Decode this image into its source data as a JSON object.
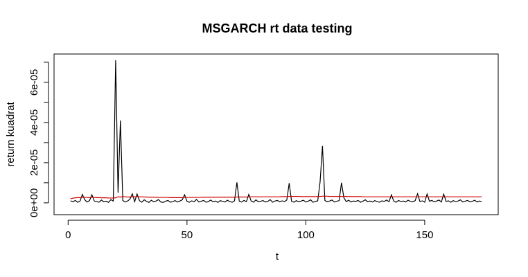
{
  "chart_data": {
    "type": "line",
    "title": "MSGARCH rt data testing",
    "x_label": "t",
    "y_label": "return kuadrat",
    "x": [
      1,
      2,
      3,
      4,
      5,
      6,
      7,
      8,
      9,
      10,
      11,
      12,
      13,
      14,
      15,
      16,
      17,
      18,
      19,
      20,
      21,
      22,
      23,
      24,
      25,
      26,
      27,
      28,
      29,
      30,
      31,
      32,
      33,
      34,
      35,
      36,
      37,
      38,
      39,
      40,
      41,
      42,
      43,
      44,
      45,
      46,
      47,
      48,
      49,
      50,
      51,
      52,
      53,
      54,
      55,
      56,
      57,
      58,
      59,
      60,
      61,
      62,
      63,
      64,
      65,
      66,
      67,
      68,
      69,
      70,
      71,
      72,
      73,
      74,
      75,
      76,
      77,
      78,
      79,
      80,
      81,
      82,
      83,
      84,
      85,
      86,
      87,
      88,
      89,
      90,
      91,
      92,
      93,
      94,
      95,
      96,
      97,
      98,
      99,
      100,
      101,
      102,
      103,
      104,
      105,
      106,
      107,
      108,
      109,
      110,
      111,
      112,
      113,
      114,
      115,
      116,
      117,
      118,
      119,
      120,
      121,
      122,
      123,
      124,
      125,
      126,
      127,
      128,
      129,
      130,
      131,
      132,
      133,
      134,
      135,
      136,
      137,
      138,
      139,
      140,
      141,
      142,
      143,
      144,
      145,
      146,
      147,
      148,
      149,
      150,
      151,
      152,
      153,
      154,
      155,
      156,
      157,
      158,
      159,
      160,
      161,
      162,
      163,
      164,
      165,
      166,
      167,
      168,
      169,
      170,
      171,
      172,
      173,
      174
    ],
    "series": [
      {
        "color": "#000000",
        "values": [
          1e-06,
          5e-07,
          1.2e-06,
          3e-07,
          8e-07,
          4.2e-06,
          1.5e-06,
          4e-07,
          1.1e-06,
          4e-06,
          9e-07,
          6e-07,
          3e-07,
          1.4e-06,
          5e-07,
          8e-07,
          2e-07,
          1.6e-06,
          9e-07,
          7.1e-05,
          5e-06,
          4.1e-05,
          1.2e-06,
          4e-07,
          9e-07,
          1.8e-06,
          4.5e-06,
          6e-07,
          4.4e-06,
          1.1e-06,
          3e-07,
          1.5e-06,
          7e-07,
          2e-07,
          1.3e-06,
          5e-07,
          9e-07,
          1.6e-06,
          4e-07,
          2e-07,
          8e-07,
          1.2e-06,
          3e-07,
          6e-07,
          1.1e-06,
          4e-07,
          9e-07,
          1.5e-06,
          4e-06,
          7e-07,
          3e-07,
          1e-06,
          5e-07,
          1.7e-06,
          4e-07,
          8e-07,
          1.2e-06,
          3e-07,
          6e-07,
          1.4e-06,
          5e-07,
          9e-07,
          2e-07,
          1.1e-06,
          7e-07,
          4e-07,
          1.3e-06,
          6e-07,
          3e-07,
          1e-06,
          1.02e-05,
          8e-07,
          4e-07,
          1.2e-06,
          6e-07,
          4.2e-06,
          9e-07,
          3e-07,
          1.5e-06,
          5e-07,
          8e-07,
          1.1e-06,
          4e-07,
          7e-07,
          1.6e-06,
          3e-07,
          9e-07,
          1.2e-06,
          5e-07,
          1e-06,
          6e-07,
          1.4e-06,
          9.8e-06,
          7e-07,
          3e-07,
          1.1e-06,
          5e-07,
          9e-07,
          1.3e-06,
          4e-07,
          8e-07,
          1.5e-06,
          3e-07,
          7e-07,
          1e-06,
          1.05e-05,
          2.83e-05,
          1.2e-06,
          5e-07,
          9e-07,
          1.4e-06,
          4e-07,
          8e-07,
          1.1e-06,
          1e-05,
          2.5e-06,
          6e-07,
          1.3e-06,
          4e-07,
          9e-07,
          7e-07,
          1.2e-06,
          3e-07,
          8e-07,
          1.5e-06,
          5e-07,
          9e-07,
          4e-07,
          1.1e-06,
          6e-07,
          3e-07,
          1e-06,
          7e-07,
          1.4e-06,
          5e-07,
          4e-06,
          8e-07,
          3e-07,
          1.2e-06,
          6e-07,
          9e-07,
          4e-07,
          1.3e-06,
          7e-07,
          5e-07,
          1.1e-06,
          4.5e-06,
          6e-07,
          1e-06,
          3e-07,
          4.4e-06,
          8e-07,
          1.2e-06,
          5e-07,
          9e-07,
          1.4e-06,
          4e-07,
          4.3e-06,
          7e-07,
          1e-06,
          3e-07,
          1.1e-06,
          6e-07,
          9e-07,
          1.5e-06,
          4e-07,
          8e-07,
          1.2e-06,
          5e-07,
          7e-07,
          1.3e-06,
          4e-07,
          9e-07,
          6e-07
        ]
      },
      {
        "color": "#cc0000",
        "values": [
          2e-06,
          2.3e-06,
          2.5e-06,
          2.6e-06,
          2.6e-06,
          2.8e-06,
          2.7e-06,
          2.7e-06,
          2.6e-06,
          2.8e-06,
          2.7e-06,
          2.6e-06,
          2.6e-06,
          2.5e-06,
          2.5e-06,
          2.5e-06,
          2.4e-06,
          2.4e-06,
          2.4e-06,
          2.5e-06,
          3e-06,
          2.9e-06,
          3.1e-06,
          3e-06,
          2.9e-06,
          2.9e-06,
          3e-06,
          3e-06,
          3.1e-06,
          3e-06,
          3e-06,
          2.9e-06,
          2.9e-06,
          2.8e-06,
          2.8e-06,
          2.8e-06,
          2.8e-06,
          2.7e-06,
          2.7e-06,
          2.7e-06,
          2.7e-06,
          2.7e-06,
          2.6e-06,
          2.6e-06,
          2.6e-06,
          2.6e-06,
          2.6e-06,
          2.6e-06,
          2.7e-06,
          2.7e-06,
          2.7e-06,
          2.7e-06,
          2.7e-06,
          2.7e-06,
          2.7e-06,
          2.7e-06,
          2.8e-06,
          2.8e-06,
          2.8e-06,
          2.8e-06,
          2.8e-06,
          2.8e-06,
          2.8e-06,
          2.8e-06,
          2.8e-06,
          2.8e-06,
          2.8e-06,
          2.8e-06,
          2.8e-06,
          2.8e-06,
          2.9e-06,
          2.9e-06,
          2.9e-06,
          2.9e-06,
          2.9e-06,
          3e-06,
          3e-06,
          3e-06,
          3e-06,
          3e-06,
          3e-06,
          3e-06,
          3e-06,
          3e-06,
          3e-06,
          3e-06,
          3e-06,
          3e-06,
          3e-06,
          3.1e-06,
          3.1e-06,
          3.1e-06,
          3.2e-06,
          3.2e-06,
          3.2e-06,
          3.2e-06,
          3.2e-06,
          3.1e-06,
          3.1e-06,
          3.1e-06,
          3.1e-06,
          3.1e-06,
          3.1e-06,
          3.1e-06,
          3.1e-06,
          3.2e-06,
          3.3e-06,
          3.3e-06,
          3.3e-06,
          3.2e-06,
          3.2e-06,
          3.2e-06,
          3.2e-06,
          3.2e-06,
          3.2e-06,
          3.2e-06,
          3.2e-06,
          3.1e-06,
          3.1e-06,
          3.1e-06,
          3.1e-06,
          3.1e-06,
          3.1e-06,
          3e-06,
          3e-06,
          3e-06,
          3e-06,
          3e-06,
          3e-06,
          3e-06,
          3e-06,
          3e-06,
          3e-06,
          3e-06,
          3e-06,
          3e-06,
          3e-06,
          3e-06,
          3e-06,
          3e-06,
          3e-06,
          3e-06,
          3e-06,
          3e-06,
          3e-06,
          3e-06,
          3e-06,
          3e-06,
          3e-06,
          3e-06,
          3e-06,
          3e-06,
          3e-06,
          3e-06,
          3e-06,
          3e-06,
          3e-06,
          3e-06,
          3e-06,
          3e-06,
          3e-06,
          3e-06,
          3e-06,
          3e-06,
          3e-06,
          3e-06,
          3e-06,
          3e-06,
          3e-06,
          3e-06,
          3e-06,
          3e-06,
          3e-06,
          3e-06
        ]
      }
    ],
    "xlim": [
      -5.92,
      180.92
    ],
    "xticks": [
      0,
      50,
      100,
      150
    ],
    "ylim": [
      -5.9e-06,
      7.41e-05
    ],
    "yticks": [
      {
        "value": 0,
        "label": "0e+00"
      },
      {
        "value": 1e-05,
        "label": null
      },
      {
        "value": 2e-05,
        "label": "2e-05"
      },
      {
        "value": 3e-05,
        "label": null
      },
      {
        "value": 4e-05,
        "label": "4e-05"
      },
      {
        "value": 5e-05,
        "label": null
      },
      {
        "value": 6e-05,
        "label": "6e-05"
      },
      {
        "value": 7e-05,
        "label": null
      }
    ]
  }
}
